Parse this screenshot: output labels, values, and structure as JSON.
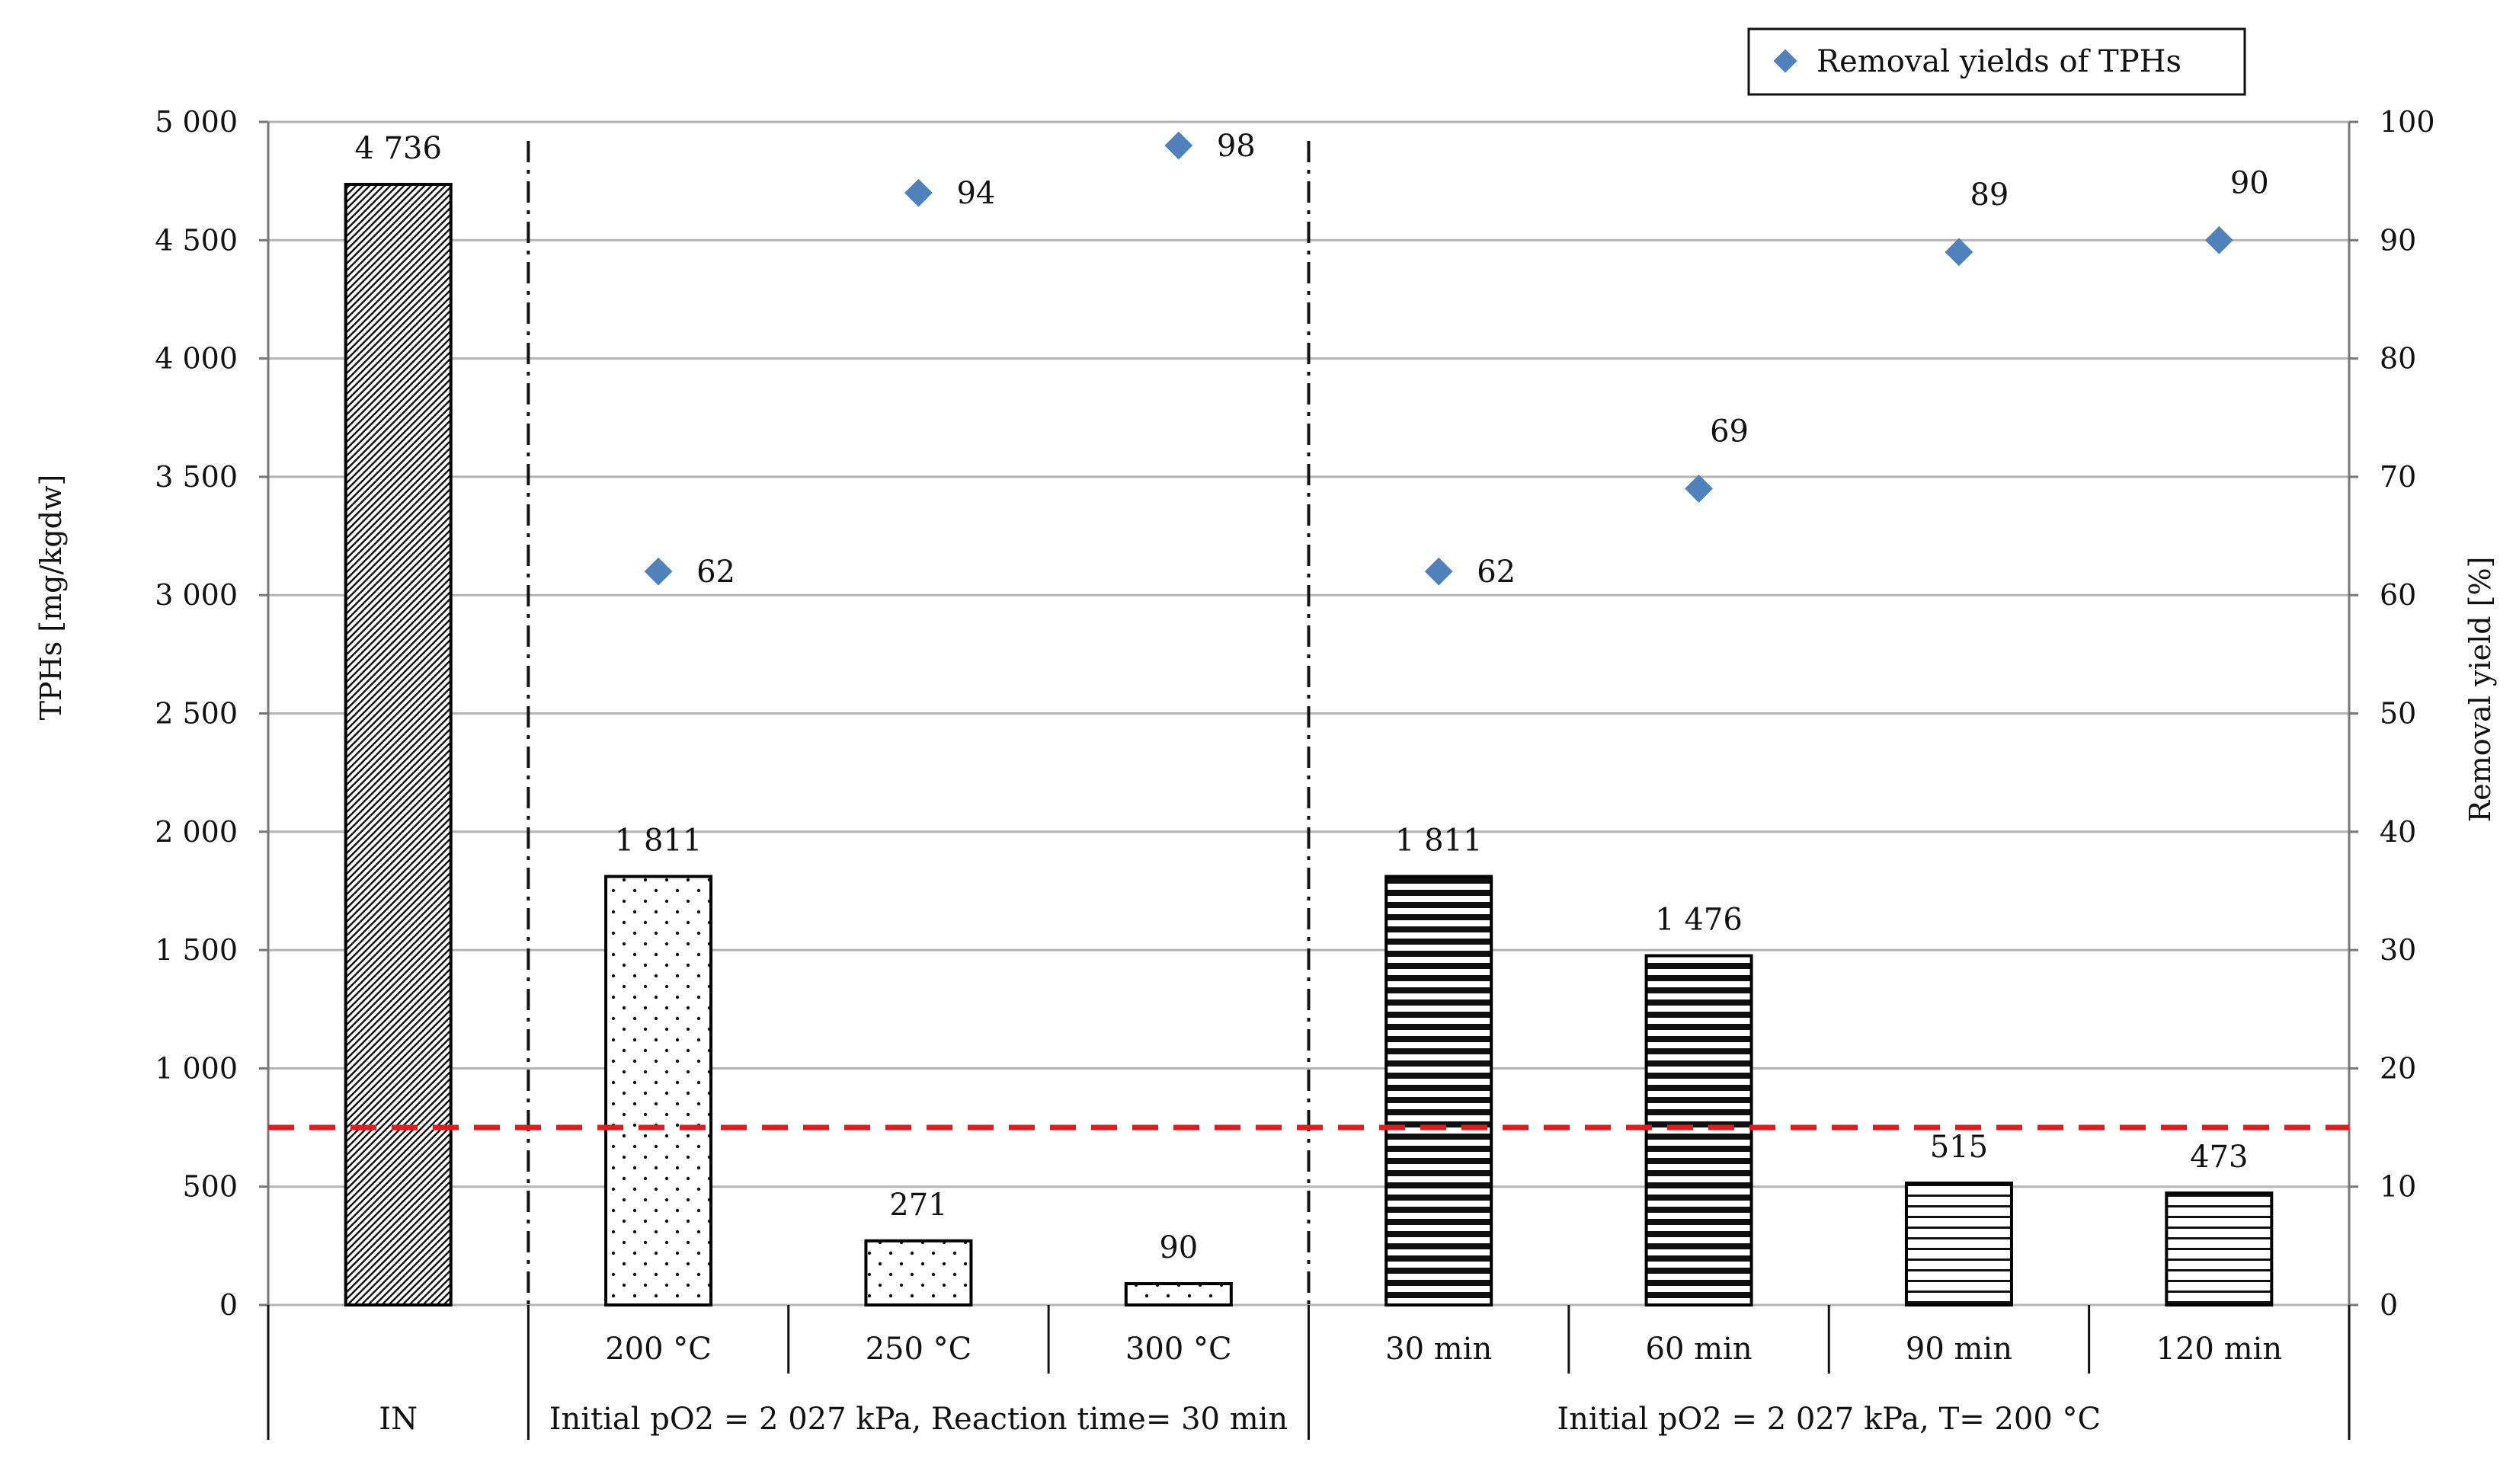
{
  "chart_data": {
    "type": "bar",
    "categories": [
      "IN",
      "200 °C",
      "250 °C",
      "300 °C",
      "30 min",
      "60 min",
      "90 min",
      "120 min"
    ],
    "group_labels": [
      "IN",
      "Initial pO2 = 2 027 kPa, Reaction time= 30 min",
      "Initial pO2 = 2 027 kPa, T= 200 °C"
    ],
    "series": [
      {
        "values": [
          4736,
          1811,
          271,
          90,
          1811,
          1476,
          515,
          473
        ],
        "value_labels": [
          "4 736",
          "1 811",
          "271",
          "90",
          "1 811",
          "1 476",
          "515",
          "473"
        ],
        "axis": "left"
      },
      {
        "name": "Removal yields of TPHs",
        "type": "scatter",
        "axis": "right",
        "values": [
          null,
          62,
          94,
          98,
          62,
          69,
          89,
          90
        ],
        "value_labels": [
          "",
          "62",
          "94",
          "98",
          "62",
          "69",
          "89",
          "90"
        ]
      }
    ],
    "ylabel": "TPHs [mg/kgdw]",
    "y2label": "Removal yield [%]",
    "ylim": [
      0,
      5000
    ],
    "y2lim": [
      0,
      100
    ],
    "yticks": [
      "0",
      "500",
      "1 000",
      "1 500",
      "2 000",
      "2 500",
      "3 000",
      "3 500",
      "4 000",
      "4 500",
      "5 000"
    ],
    "y2ticks": [
      "0",
      "10",
      "20",
      "30",
      "40",
      "50",
      "60",
      "70",
      "80",
      "90",
      "100"
    ],
    "reference_line": {
      "value": 750,
      "axis": "left",
      "style": "dashed",
      "color": "#e41a1c"
    },
    "grid": true,
    "legend_position": "top-right",
    "colors": {
      "marker": "#4f81bd",
      "bar_outline": "#000000",
      "grid": "#b3b3b3"
    }
  }
}
